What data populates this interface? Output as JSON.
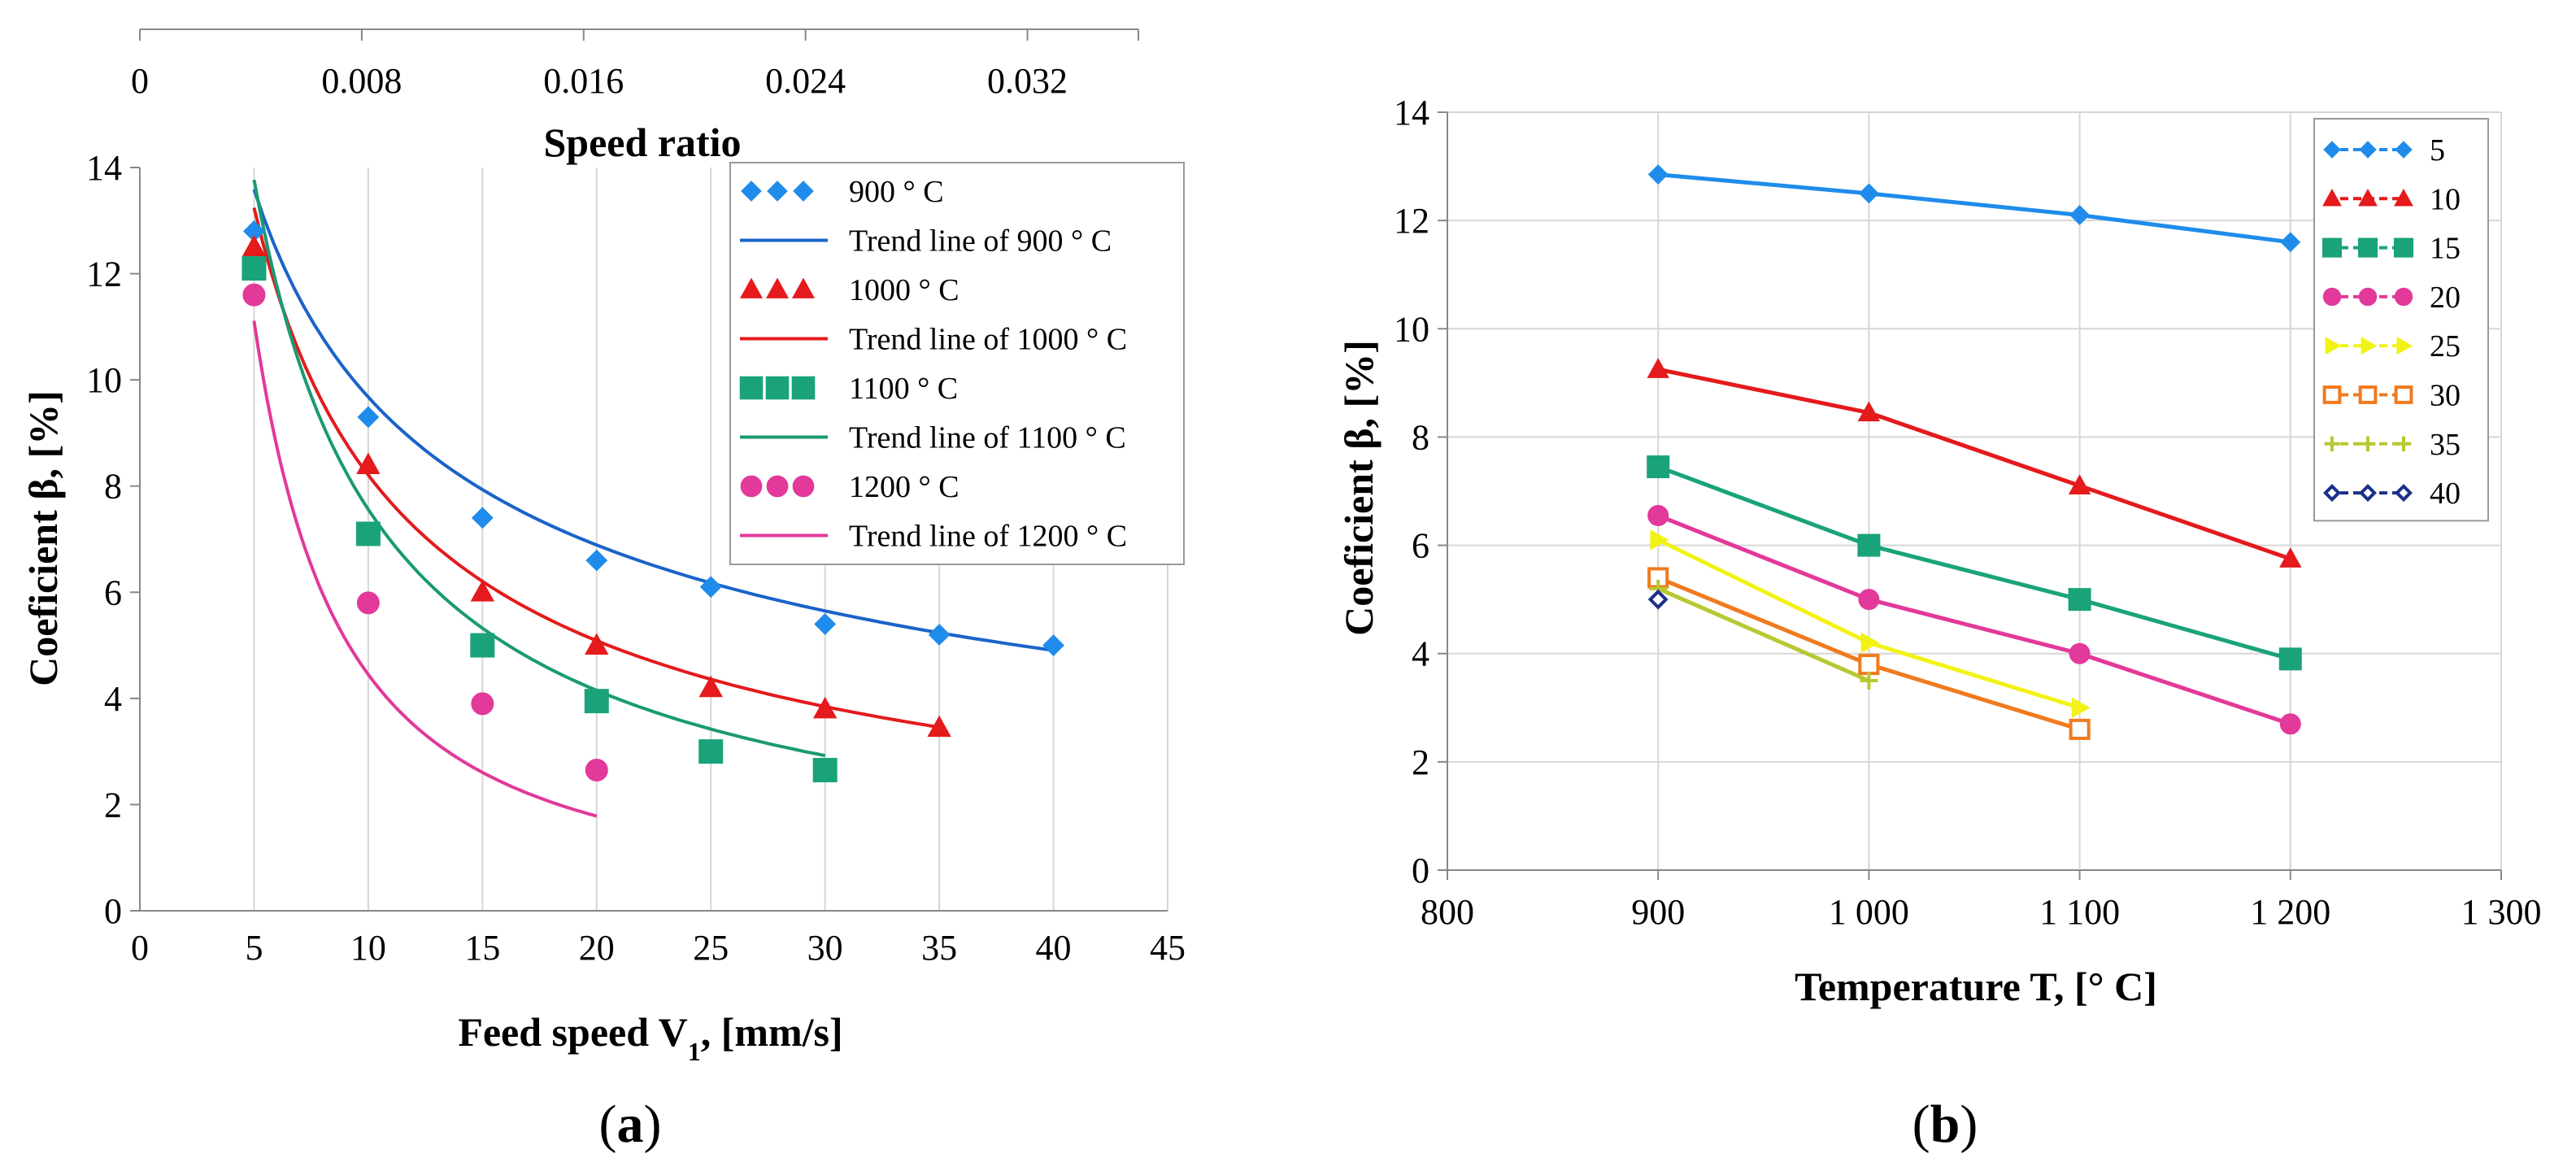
{
  "chart_data": [
    {
      "type": "scatter",
      "panel_label": "a",
      "xlabel": "Feed speed V",
      "xlabel_sub": "1",
      "xlabel_suffix": ", [mm/s]",
      "ylabel": "Coeficient β, [%]",
      "xlim": [
        0,
        45
      ],
      "ylim": [
        0,
        14
      ],
      "x_ticks": [
        0,
        5,
        10,
        15,
        20,
        25,
        30,
        35,
        40,
        45
      ],
      "y_ticks": [
        0,
        2,
        4,
        6,
        8,
        10,
        12,
        14
      ],
      "grid": "vertical",
      "secondary_xaxis": {
        "label": "Speed ratio",
        "range": [
          0,
          0.036
        ],
        "tick_values": [
          0,
          0.008,
          0.016,
          0.024,
          0.032
        ],
        "tick_labels": [
          "0",
          "0.008",
          "0.016",
          "0.024",
          "0.032"
        ]
      },
      "legend_position": "top-right",
      "series": [
        {
          "name": "900 ° C",
          "trend_name": "Trend line of 900 ° C",
          "color": "#1f8ceb",
          "trend_color": "#1a63c9",
          "marker": "diamond",
          "x": [
            5,
            10,
            15,
            20,
            25,
            30,
            35,
            40
          ],
          "y": [
            12.8,
            9.3,
            7.4,
            6.6,
            6.1,
            5.4,
            5.2,
            5.0
          ],
          "trend": {
            "a": 29.9,
            "b": -0.49,
            "x_range": [
              5,
              40
            ]
          }
        },
        {
          "name": "1000 ° C",
          "trend_name": "Trend line of 1000 ° C",
          "color": "#e41a1c",
          "trend_color": "#e41a1c",
          "marker": "triangle",
          "x": [
            5,
            10,
            15,
            20,
            25,
            30,
            35
          ],
          "y": [
            12.5,
            8.4,
            6.0,
            5.0,
            4.2,
            3.8,
            3.45
          ],
          "trend": {
            "a": 40.2,
            "b": -0.69,
            "x_range": [
              5,
              35
            ]
          }
        },
        {
          "name": "1100 ° C",
          "trend_name": "Trend line of 1100 ° C",
          "color": "#1aa37a",
          "trend_color": "#1a9a72",
          "marker": "square",
          "x": [
            5,
            10,
            15,
            20,
            25,
            30
          ],
          "y": [
            12.1,
            7.1,
            5.0,
            3.95,
            3.0,
            2.65
          ],
          "trend": {
            "a": 55.4,
            "b": -0.865,
            "x_range": [
              5,
              30
            ]
          }
        },
        {
          "name": "1200 ° C",
          "trend_name": "Trend line of 1200 ° C",
          "color": "#e2399a",
          "trend_color": "#e2399a",
          "marker": "circle",
          "x": [
            5,
            10,
            15,
            20
          ],
          "y": [
            11.6,
            5.8,
            3.9,
            2.65
          ],
          "trend": {
            "a": 93.0,
            "b": -1.32,
            "x_range": [
              5,
              20
            ]
          }
        }
      ]
    },
    {
      "type": "line",
      "panel_label": "b",
      "xlabel": "Temperature T, [° C]",
      "ylabel": "Coeficient β, [%]",
      "xlim": [
        800,
        1300
      ],
      "ylim": [
        0,
        14
      ],
      "x_ticks": [
        800,
        900,
        1000,
        1100,
        1200,
        1300
      ],
      "x_tick_labels": [
        "800",
        "900",
        "1 000",
        "1 100",
        "1 200",
        "1 300"
      ],
      "y_ticks": [
        0,
        2,
        4,
        6,
        8,
        10,
        12,
        14
      ],
      "grid": "both",
      "legend_position": "top-right",
      "series": [
        {
          "name": "5",
          "color": "#1f8ceb",
          "marker": "diamond",
          "x": [
            900,
            1000,
            1100,
            1200
          ],
          "y": [
            12.85,
            12.5,
            12.1,
            11.6
          ]
        },
        {
          "name": "10",
          "color": "#e41a1c",
          "marker": "triangle",
          "x": [
            900,
            1000,
            1100,
            1200
          ],
          "y": [
            9.25,
            8.45,
            7.1,
            5.75
          ]
        },
        {
          "name": "15",
          "color": "#1aa37a",
          "marker": "square",
          "x": [
            900,
            1000,
            1100,
            1200
          ],
          "y": [
            7.45,
            6.0,
            5.0,
            3.9
          ]
        },
        {
          "name": "20",
          "color": "#e2399a",
          "marker": "circle",
          "x": [
            900,
            1000,
            1100,
            1200
          ],
          "y": [
            6.55,
            5.0,
            4.0,
            2.7
          ]
        },
        {
          "name": "25",
          "color": "#f2f216",
          "marker": "triangle-right",
          "x": [
            900,
            1000,
            1100
          ],
          "y": [
            6.1,
            4.2,
            3.0
          ]
        },
        {
          "name": "30",
          "color": "#f07a1e",
          "marker": "square-open",
          "x": [
            900,
            1000,
            1100
          ],
          "y": [
            5.4,
            3.8,
            2.6
          ]
        },
        {
          "name": "35",
          "color": "#b8c832",
          "marker": "plus",
          "x": [
            900,
            1000
          ],
          "y": [
            5.2,
            3.5
          ]
        },
        {
          "name": "40",
          "color": "#1c2f8a",
          "marker": "diamond-open",
          "x": [
            900
          ],
          "y": [
            5.0
          ]
        }
      ]
    }
  ]
}
